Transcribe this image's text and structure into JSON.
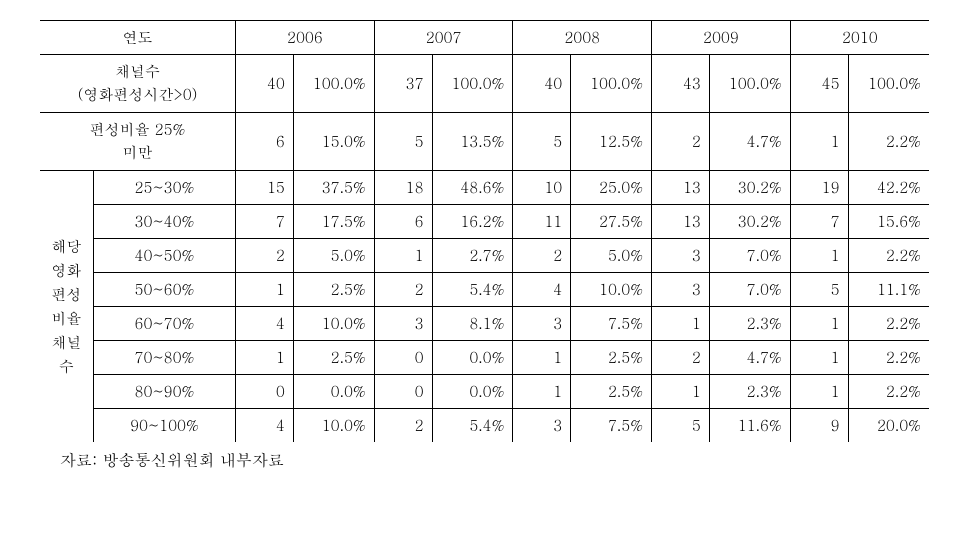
{
  "header": {
    "yearLabel": "연도",
    "years": [
      "2006",
      "2007",
      "2008",
      "2009",
      "2010"
    ]
  },
  "rows": {
    "channels": {
      "label1": "채널수",
      "label2": "(영화편성시간>0)",
      "cells": [
        {
          "n": "40",
          "p": "100.0%"
        },
        {
          "n": "37",
          "p": "100.0%"
        },
        {
          "n": "40",
          "p": "100.0%"
        },
        {
          "n": "43",
          "p": "100.0%"
        },
        {
          "n": "45",
          "p": "100.0%"
        }
      ]
    },
    "lt25": {
      "label1": "편성비율 25%",
      "label2": "미만",
      "cells": [
        {
          "n": "6",
          "p": "15.0%"
        },
        {
          "n": "5",
          "p": "13.5%"
        },
        {
          "n": "5",
          "p": "12.5%"
        },
        {
          "n": "2",
          "p": "4.7%"
        },
        {
          "n": "1",
          "p": "2.2%"
        }
      ]
    },
    "groupLabel": "해당\n영화\n편성\n비율\n채널\n수",
    "ranges": [
      {
        "label": "25~30%",
        "cells": [
          {
            "n": "15",
            "p": "37.5%"
          },
          {
            "n": "18",
            "p": "48.6%"
          },
          {
            "n": "10",
            "p": "25.0%"
          },
          {
            "n": "13",
            "p": "30.2%"
          },
          {
            "n": "19",
            "p": "42.2%"
          }
        ]
      },
      {
        "label": "30~40%",
        "cells": [
          {
            "n": "7",
            "p": "17.5%"
          },
          {
            "n": "6",
            "p": "16.2%"
          },
          {
            "n": "11",
            "p": "27.5%"
          },
          {
            "n": "13",
            "p": "30.2%"
          },
          {
            "n": "7",
            "p": "15.6%"
          }
        ]
      },
      {
        "label": "40~50%",
        "cells": [
          {
            "n": "2",
            "p": "5.0%"
          },
          {
            "n": "1",
            "p": "2.7%"
          },
          {
            "n": "2",
            "p": "5.0%"
          },
          {
            "n": "3",
            "p": "7.0%"
          },
          {
            "n": "1",
            "p": "2.2%"
          }
        ]
      },
      {
        "label": "50~60%",
        "cells": [
          {
            "n": "1",
            "p": "2.5%"
          },
          {
            "n": "2",
            "p": "5.4%"
          },
          {
            "n": "4",
            "p": "10.0%"
          },
          {
            "n": "3",
            "p": "7.0%"
          },
          {
            "n": "5",
            "p": "11.1%"
          }
        ]
      },
      {
        "label": "60~70%",
        "cells": [
          {
            "n": "4",
            "p": "10.0%"
          },
          {
            "n": "3",
            "p": "8.1%"
          },
          {
            "n": "3",
            "p": "7.5%"
          },
          {
            "n": "1",
            "p": "2.3%"
          },
          {
            "n": "1",
            "p": "2.2%"
          }
        ]
      },
      {
        "label": "70~80%",
        "cells": [
          {
            "n": "1",
            "p": "2.5%"
          },
          {
            "n": "0",
            "p": "0.0%"
          },
          {
            "n": "1",
            "p": "2.5%"
          },
          {
            "n": "2",
            "p": "4.7%"
          },
          {
            "n": "1",
            "p": "2.2%"
          }
        ]
      },
      {
        "label": "80~90%",
        "cells": [
          {
            "n": "0",
            "p": "0.0%"
          },
          {
            "n": "0",
            "p": "0.0%"
          },
          {
            "n": "1",
            "p": "2.5%"
          },
          {
            "n": "1",
            "p": "2.3%"
          },
          {
            "n": "1",
            "p": "2.2%"
          }
        ]
      },
      {
        "label": "90~100%",
        "cells": [
          {
            "n": "4",
            "p": "10.0%"
          },
          {
            "n": "2",
            "p": "5.4%"
          },
          {
            "n": "3",
            "p": "7.5%"
          },
          {
            "n": "5",
            "p": "11.6%"
          },
          {
            "n": "9",
            "p": "20.0%"
          }
        ]
      }
    ]
  },
  "source": "자료: 방송통신위원회 내부자료"
}
